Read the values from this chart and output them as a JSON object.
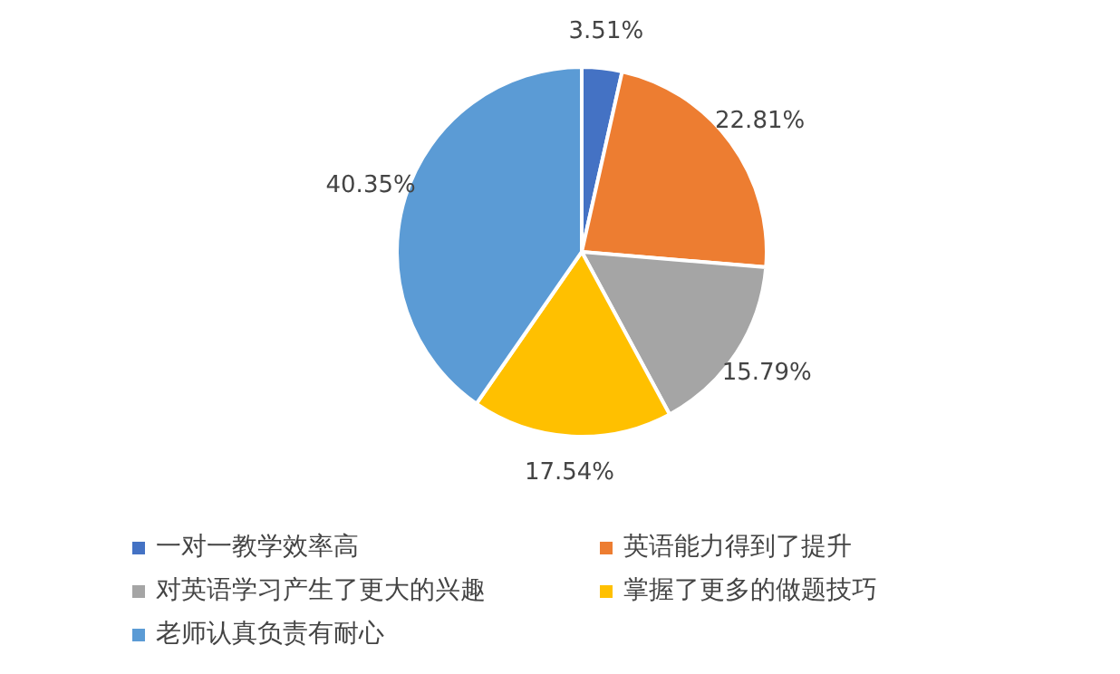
{
  "chart_data": {
    "type": "pie",
    "categories": [
      "一对一教学效率高",
      "英语能力得到了提升",
      "对英语学习产生了更大的兴趣",
      "掌握了更多的做题技巧",
      "老师认真负责有耐心"
    ],
    "values": [
      3.51,
      22.81,
      15.79,
      17.54,
      40.35
    ],
    "colors": [
      "#4472c4",
      "#ed7d31",
      "#a5a5a5",
      "#ffc000",
      "#5b9bd5"
    ],
    "value_labels": [
      "3.51%",
      "22.81%",
      "15.79%",
      "17.54%",
      "40.35%"
    ],
    "legend": "bottom"
  }
}
